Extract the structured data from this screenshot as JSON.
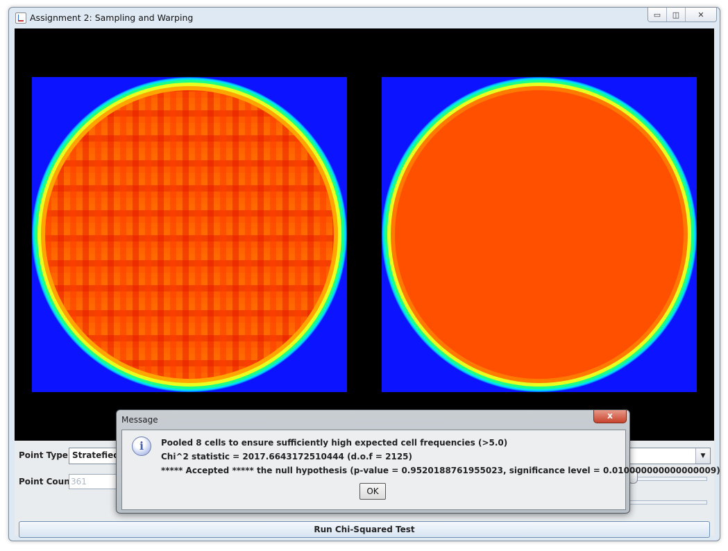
{
  "window": {
    "title": "Assignment 2: Sampling and Warping",
    "controls": {
      "minimize": "▭",
      "maximize": "◫",
      "close": "✕"
    }
  },
  "controls": {
    "point_type_label": "Point Type:",
    "point_type_value": "Stratefied",
    "point_count_label": "Point Count:",
    "point_count_value": "361",
    "run_button": "Run Chi-Squared Test"
  },
  "dialog": {
    "title": "Message",
    "close": "x",
    "icon": "info-icon",
    "lines": [
      "Pooled 8 cells to ensure sufficiently high expected cell frequencies (>5.0)",
      "Chi^2 statistic = 2017.6643172510444 (d.o.f = 2125)",
      "***** Accepted ***** the null hypothesis (p-value = 0.9520188761955023, significance level = 0.010000000000000009)"
    ],
    "ok": "OK"
  },
  "colors": {
    "background_blue": "#0c14ff",
    "heat_red": "#ff5000",
    "canvas_black": "#000000"
  }
}
